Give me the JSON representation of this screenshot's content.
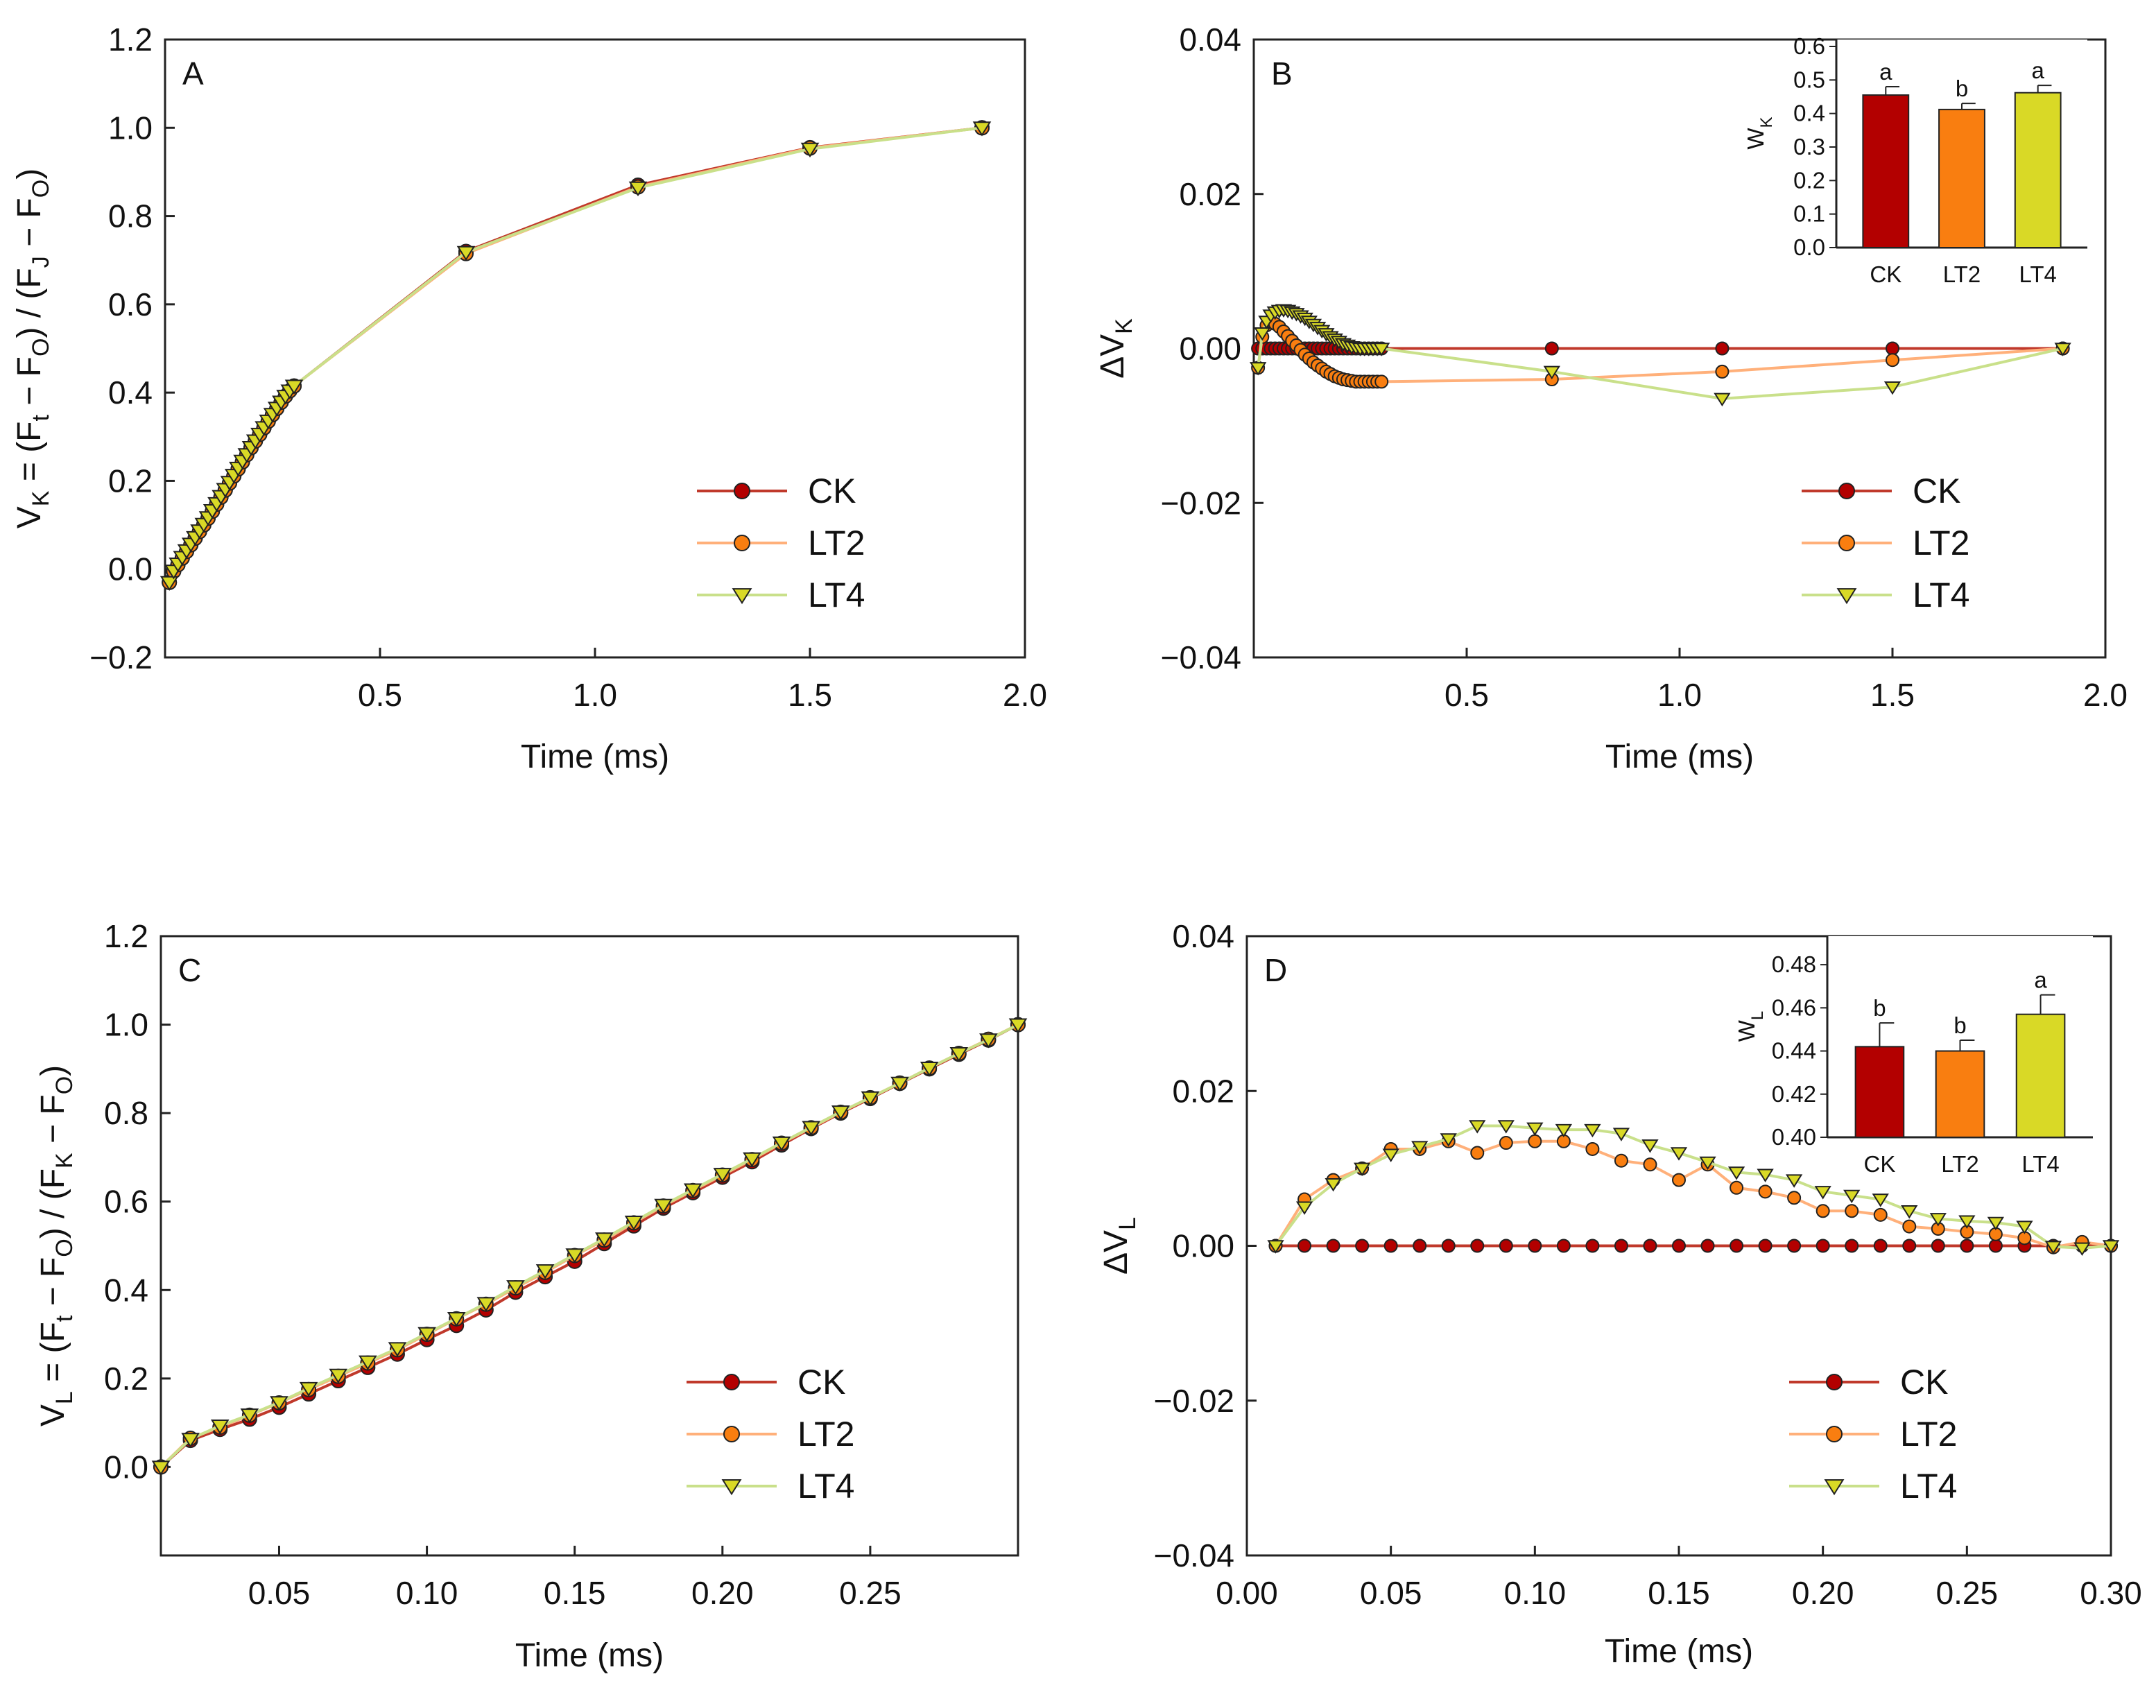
{
  "figure": {
    "colors": {
      "CK": "#b30000",
      "LT2": "#f97e10",
      "LT4": "#d9d926",
      "CK_line": "#c0392b",
      "LT2_line": "#ffb07a",
      "LT4_line": "#c9e08a"
    }
  },
  "chart_data": [
    {
      "panel": "A",
      "type": "line",
      "xlabel": "Time (ms)",
      "ylabel_parts": [
        "V",
        "K",
        " = (F",
        "t",
        " − F",
        "O",
        ") / (F",
        "J",
        " − F",
        "O",
        ")"
      ],
      "xlim": [
        0.0,
        2.0
      ],
      "ylim": [
        -0.2,
        1.2
      ],
      "xticks": [
        0.5,
        1.0,
        1.5,
        2.0
      ],
      "xtick_labels": [
        "0.5",
        "1.0",
        "1.5",
        "2.0"
      ],
      "yticks": [
        -0.2,
        0.0,
        0.2,
        0.4,
        0.6,
        0.8,
        1.0,
        1.2
      ],
      "ytick_labels": [
        "−0.2",
        "0.0",
        "0.2",
        "0.4",
        "0.6",
        "0.8",
        "1.0",
        "1.2"
      ],
      "legend": [
        "CK",
        "LT2",
        "LT4"
      ],
      "x": [
        0.01,
        0.02,
        0.03,
        0.04,
        0.05,
        0.06,
        0.07,
        0.08,
        0.09,
        0.1,
        0.11,
        0.12,
        0.13,
        0.14,
        0.15,
        0.16,
        0.17,
        0.18,
        0.19,
        0.2,
        0.21,
        0.22,
        0.23,
        0.24,
        0.25,
        0.26,
        0.27,
        0.28,
        0.29,
        0.3,
        0.7,
        1.1,
        1.5,
        1.9
      ],
      "series": [
        {
          "name": "CK",
          "values": [
            -0.03,
            -0.005,
            0.01,
            0.025,
            0.04,
            0.055,
            0.07,
            0.085,
            0.1,
            0.115,
            0.131,
            0.147,
            0.163,
            0.179,
            0.195,
            0.211,
            0.227,
            0.243,
            0.259,
            0.275,
            0.29,
            0.305,
            0.32,
            0.335,
            0.35,
            0.364,
            0.378,
            0.392,
            0.404,
            0.415,
            0.72,
            0.87,
            0.955,
            1.0
          ]
        },
        {
          "name": "LT2",
          "values": [
            -0.03,
            -0.005,
            0.01,
            0.025,
            0.04,
            0.055,
            0.07,
            0.085,
            0.1,
            0.115,
            0.131,
            0.147,
            0.163,
            0.179,
            0.195,
            0.211,
            0.227,
            0.243,
            0.259,
            0.275,
            0.29,
            0.305,
            0.32,
            0.335,
            0.35,
            0.364,
            0.378,
            0.392,
            0.404,
            0.415,
            0.715,
            0.866,
            0.954,
            1.0
          ]
        },
        {
          "name": "LT4",
          "values": [
            -0.03,
            -0.004,
            0.012,
            0.027,
            0.042,
            0.057,
            0.072,
            0.087,
            0.102,
            0.117,
            0.133,
            0.149,
            0.165,
            0.181,
            0.197,
            0.213,
            0.229,
            0.245,
            0.26,
            0.276,
            0.291,
            0.306,
            0.321,
            0.336,
            0.351,
            0.365,
            0.379,
            0.392,
            0.404,
            0.415,
            0.718,
            0.864,
            0.952,
            1.0
          ]
        }
      ]
    },
    {
      "panel": "B",
      "type": "line",
      "xlabel": "Time (ms)",
      "ylabel_parts": [
        "ΔV",
        "K"
      ],
      "xlim": [
        0.0,
        2.0
      ],
      "ylim": [
        -0.04,
        0.04
      ],
      "xticks": [
        0.5,
        1.0,
        1.5,
        2.0
      ],
      "xtick_labels": [
        "0.5",
        "1.0",
        "1.5",
        "2.0"
      ],
      "yticks": [
        -0.04,
        -0.02,
        0.0,
        0.02,
        0.04
      ],
      "ytick_labels": [
        "−0.04",
        "−0.02",
        "0.00",
        "0.02",
        "0.04"
      ],
      "legend": [
        "CK",
        "LT2",
        "LT4"
      ],
      "x": [
        0.01,
        0.02,
        0.03,
        0.04,
        0.05,
        0.06,
        0.07,
        0.08,
        0.09,
        0.1,
        0.11,
        0.12,
        0.13,
        0.14,
        0.15,
        0.16,
        0.17,
        0.18,
        0.19,
        0.2,
        0.21,
        0.22,
        0.23,
        0.24,
        0.25,
        0.26,
        0.27,
        0.28,
        0.29,
        0.3,
        0.7,
        1.1,
        1.5,
        1.9
      ],
      "series": [
        {
          "name": "CK",
          "values": [
            0,
            0,
            0,
            0,
            0,
            0,
            0,
            0,
            0,
            0,
            0,
            0,
            0,
            0,
            0,
            0,
            0,
            0,
            0,
            0,
            0,
            0,
            0,
            0,
            0,
            0,
            0,
            0,
            0,
            0,
            0,
            0,
            0,
            0
          ]
        },
        {
          "name": "LT2",
          "values": [
            -0.0025,
            0.0015,
            0.003,
            0.0035,
            0.0032,
            0.0028,
            0.0022,
            0.0016,
            0.001,
            0.0004,
            -0.0002,
            -0.0008,
            -0.0013,
            -0.0018,
            -0.0022,
            -0.0026,
            -0.003,
            -0.0033,
            -0.0036,
            -0.0038,
            -0.004,
            -0.0041,
            -0.0042,
            -0.0043,
            -0.0043,
            -0.0043,
            -0.0043,
            -0.0043,
            -0.0043,
            -0.0043,
            -0.004,
            -0.003,
            -0.0015,
            0.0
          ]
        },
        {
          "name": "LT4",
          "values": [
            -0.0025,
            0.002,
            0.0035,
            0.0043,
            0.0047,
            0.0049,
            0.005,
            0.0049,
            0.0047,
            0.0045,
            0.0042,
            0.0039,
            0.0035,
            0.0031,
            0.0027,
            0.0023,
            0.0019,
            0.0015,
            0.0012,
            0.0009,
            0.0006,
            0.0004,
            0.0002,
            0.0001,
            0.0,
            0.0,
            0.0,
            0.0,
            0.0,
            0.0,
            -0.003,
            -0.0065,
            -0.005,
            0.0
          ]
        }
      ],
      "inset": {
        "ylabel_parts": [
          "W",
          "K"
        ],
        "ylim": [
          0.0,
          0.6
        ],
        "yticks": [
          0.0,
          0.1,
          0.2,
          0.3,
          0.4,
          0.5,
          0.6
        ],
        "ytick_labels": [
          "0.0",
          "0.1",
          "0.2",
          "0.3",
          "0.4",
          "0.5",
          "0.6"
        ],
        "categories": [
          "CK",
          "LT2",
          "LT4"
        ],
        "values": [
          0.455,
          0.412,
          0.462
        ],
        "errors": [
          0.025,
          0.018,
          0.022
        ],
        "significance": [
          "a",
          "b",
          "a"
        ]
      }
    },
    {
      "panel": "C",
      "type": "line",
      "xlabel": "Time (ms)",
      "ylabel_parts": [
        "V",
        "L",
        " = (F",
        "t",
        " − F",
        "O",
        ") / (F",
        "K",
        " − F",
        "O",
        ")"
      ],
      "xlim": [
        0.01,
        0.3
      ],
      "ylim": [
        -0.2,
        1.2
      ],
      "xticks": [
        0.05,
        0.1,
        0.15,
        0.2,
        0.25
      ],
      "xtick_labels": [
        "0.05",
        "0.10",
        "0.15",
        "0.20",
        "0.25"
      ],
      "yticks": [
        0.0,
        0.2,
        0.4,
        0.6,
        0.8,
        1.0,
        1.2
      ],
      "ytick_labels": [
        "0.0",
        "0.2",
        "0.4",
        "0.6",
        "0.8",
        "1.0",
        "1.2"
      ],
      "legend": [
        "CK",
        "LT2",
        "LT4"
      ],
      "x": [
        0.01,
        0.02,
        0.03,
        0.04,
        0.05,
        0.06,
        0.07,
        0.08,
        0.09,
        0.1,
        0.11,
        0.12,
        0.13,
        0.14,
        0.15,
        0.16,
        0.17,
        0.18,
        0.19,
        0.2,
        0.21,
        0.22,
        0.23,
        0.24,
        0.25,
        0.26,
        0.27,
        0.28,
        0.29,
        0.3
      ],
      "series": [
        {
          "name": "CK",
          "values": [
            0.0,
            0.06,
            0.085,
            0.108,
            0.135,
            0.165,
            0.195,
            0.225,
            0.255,
            0.288,
            0.32,
            0.355,
            0.395,
            0.43,
            0.465,
            0.505,
            0.545,
            0.585,
            0.62,
            0.655,
            0.69,
            0.728,
            0.765,
            0.8,
            0.833,
            0.867,
            0.9,
            0.933,
            0.965,
            1.0
          ]
        },
        {
          "name": "LT2",
          "values": [
            0.0,
            0.065,
            0.09,
            0.117,
            0.145,
            0.175,
            0.205,
            0.235,
            0.265,
            0.3,
            0.335,
            0.368,
            0.405,
            0.44,
            0.478,
            0.513,
            0.552,
            0.59,
            0.625,
            0.66,
            0.695,
            0.732,
            0.767,
            0.802,
            0.835,
            0.868,
            0.902,
            0.935,
            0.967,
            1.0
          ]
        },
        {
          "name": "LT4",
          "values": [
            0.0,
            0.063,
            0.093,
            0.118,
            0.146,
            0.178,
            0.208,
            0.238,
            0.268,
            0.302,
            0.336,
            0.37,
            0.408,
            0.444,
            0.48,
            0.516,
            0.554,
            0.592,
            0.627,
            0.662,
            0.697,
            0.733,
            0.768,
            0.803,
            0.835,
            0.868,
            0.902,
            0.935,
            0.966,
            1.0
          ]
        }
      ]
    },
    {
      "panel": "D",
      "type": "line",
      "xlabel": "Time (ms)",
      "ylabel_parts": [
        "ΔV",
        "L"
      ],
      "xlim": [
        0.0,
        0.3
      ],
      "ylim": [
        -0.04,
        0.04
      ],
      "xticks": [
        0.0,
        0.05,
        0.1,
        0.15,
        0.2,
        0.25,
        0.3
      ],
      "xtick_labels": [
        "0.00",
        "0.05",
        "0.10",
        "0.15",
        "0.20",
        "0.25",
        "0.30"
      ],
      "yticks": [
        -0.04,
        -0.02,
        0.0,
        0.02,
        0.04
      ],
      "ytick_labels": [
        "−0.04",
        "−0.02",
        "0.00",
        "0.02",
        "0.04"
      ],
      "legend": [
        "CK",
        "LT2",
        "LT4"
      ],
      "x": [
        0.01,
        0.02,
        0.03,
        0.04,
        0.05,
        0.06,
        0.07,
        0.08,
        0.09,
        0.1,
        0.11,
        0.12,
        0.13,
        0.14,
        0.15,
        0.16,
        0.17,
        0.18,
        0.19,
        0.2,
        0.21,
        0.22,
        0.23,
        0.24,
        0.25,
        0.26,
        0.27,
        0.28,
        0.29,
        0.3
      ],
      "series": [
        {
          "name": "CK",
          "values": [
            0,
            0,
            0,
            0,
            0,
            0,
            0,
            0,
            0,
            0,
            0,
            0,
            0,
            0,
            0,
            0,
            0,
            0,
            0,
            0,
            0,
            0,
            0,
            0,
            0,
            0,
            0,
            0,
            0,
            0
          ]
        },
        {
          "name": "LT2",
          "values": [
            0.0,
            0.006,
            0.0085,
            0.01,
            0.0125,
            0.0125,
            0.0135,
            0.012,
            0.0133,
            0.0135,
            0.0135,
            0.0125,
            0.011,
            0.0105,
            0.0085,
            0.0105,
            0.0075,
            0.007,
            0.0062,
            0.0045,
            0.0045,
            0.004,
            0.0025,
            0.0022,
            0.0018,
            0.0015,
            0.001,
            -0.0002,
            0.0005,
            0.0
          ]
        },
        {
          "name": "LT4",
          "values": [
            0.0,
            0.005,
            0.008,
            0.01,
            0.0118,
            0.0128,
            0.0138,
            0.0155,
            0.0155,
            0.0152,
            0.015,
            0.015,
            0.0145,
            0.013,
            0.012,
            0.0108,
            0.0095,
            0.0092,
            0.0085,
            0.007,
            0.0065,
            0.006,
            0.0045,
            0.0035,
            0.0032,
            0.003,
            0.0025,
            -0.0001,
            -0.0003,
            0.0
          ]
        }
      ],
      "inset": {
        "ylabel_parts": [
          "W",
          "L"
        ],
        "ylim": [
          0.4,
          0.49
        ],
        "yticks": [
          0.4,
          0.42,
          0.44,
          0.46,
          0.48
        ],
        "ytick_labels": [
          "0.40",
          "0.42",
          "0.44",
          "0.46",
          "0.48"
        ],
        "categories": [
          "CK",
          "LT2",
          "LT4"
        ],
        "values": [
          0.442,
          0.44,
          0.457
        ],
        "errors": [
          0.011,
          0.005,
          0.009
        ],
        "significance": [
          "b",
          "b",
          "a"
        ]
      }
    }
  ]
}
